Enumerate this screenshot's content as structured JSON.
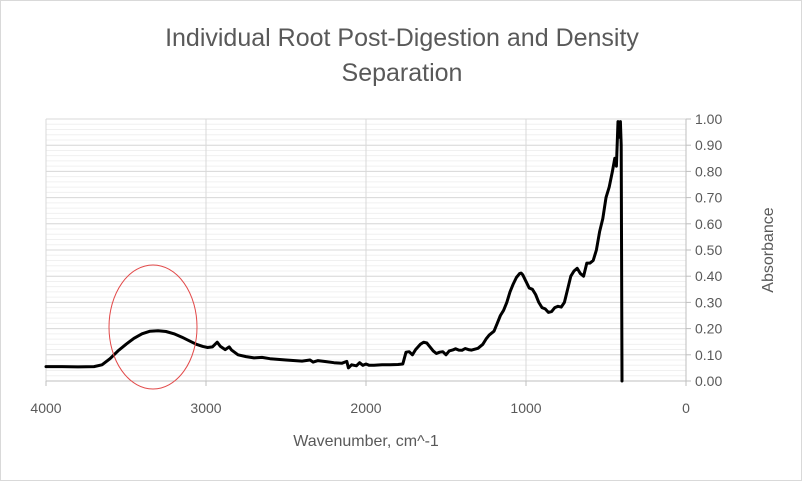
{
  "chart_data": {
    "type": "line",
    "title_line1": "Individual Root Post-Digestion and Density",
    "title_line2": "Separation",
    "xlabel": "Wavenumber, cm^-1",
    "ylabel": "Absorbance",
    "xlim": [
      4000,
      0
    ],
    "ylim": [
      0,
      1
    ],
    "x_reversed": true,
    "y_axis_side": "right",
    "x_ticks": [
      {
        "value": 4000,
        "label": "4000"
      },
      {
        "value": 3000,
        "label": "3000"
      },
      {
        "value": 2000,
        "label": "2000"
      },
      {
        "value": 1000,
        "label": "1000"
      },
      {
        "value": 0,
        "label": "0"
      }
    ],
    "y_ticks": [
      {
        "value": 0.0,
        "label": "0.00"
      },
      {
        "value": 0.1,
        "label": "0.10"
      },
      {
        "value": 0.2,
        "label": "0.20"
      },
      {
        "value": 0.3,
        "label": "0.30"
      },
      {
        "value": 0.4,
        "label": "0.40"
      },
      {
        "value": 0.5,
        "label": "0.50"
      },
      {
        "value": 0.6,
        "label": "0.60"
      },
      {
        "value": 0.7,
        "label": "0.70"
      },
      {
        "value": 0.8,
        "label": "0.80"
      },
      {
        "value": 0.9,
        "label": "0.90"
      },
      {
        "value": 1.0,
        "label": "1.00"
      }
    ],
    "grid": {
      "major_y": true,
      "minor_y": true,
      "major_x": true
    },
    "series": [
      {
        "color": "#000000",
        "points": [
          [
            4000,
            0.055
          ],
          [
            3900,
            0.055
          ],
          [
            3800,
            0.054
          ],
          [
            3700,
            0.055
          ],
          [
            3650,
            0.062
          ],
          [
            3600,
            0.085
          ],
          [
            3550,
            0.115
          ],
          [
            3500,
            0.14
          ],
          [
            3450,
            0.163
          ],
          [
            3400,
            0.18
          ],
          [
            3350,
            0.19
          ],
          [
            3300,
            0.192
          ],
          [
            3250,
            0.189
          ],
          [
            3200,
            0.18
          ],
          [
            3150,
            0.167
          ],
          [
            3100,
            0.152
          ],
          [
            3060,
            0.14
          ],
          [
            3020,
            0.132
          ],
          [
            2990,
            0.128
          ],
          [
            2960,
            0.13
          ],
          [
            2930,
            0.148
          ],
          [
            2910,
            0.132
          ],
          [
            2880,
            0.12
          ],
          [
            2855,
            0.13
          ],
          [
            2840,
            0.118
          ],
          [
            2800,
            0.1
          ],
          [
            2750,
            0.093
          ],
          [
            2700,
            0.088
          ],
          [
            2650,
            0.09
          ],
          [
            2600,
            0.085
          ],
          [
            2500,
            0.08
          ],
          [
            2400,
            0.076
          ],
          [
            2350,
            0.08
          ],
          [
            2330,
            0.072
          ],
          [
            2300,
            0.078
          ],
          [
            2250,
            0.074
          ],
          [
            2200,
            0.07
          ],
          [
            2150,
            0.068
          ],
          [
            2120,
            0.075
          ],
          [
            2110,
            0.05
          ],
          [
            2090,
            0.062
          ],
          [
            2060,
            0.058
          ],
          [
            2040,
            0.07
          ],
          [
            2020,
            0.06
          ],
          [
            2000,
            0.065
          ],
          [
            1980,
            0.06
          ],
          [
            1950,
            0.06
          ],
          [
            1900,
            0.062
          ],
          [
            1850,
            0.062
          ],
          [
            1800,
            0.063
          ],
          [
            1770,
            0.065
          ],
          [
            1750,
            0.11
          ],
          [
            1730,
            0.112
          ],
          [
            1710,
            0.1
          ],
          [
            1690,
            0.12
          ],
          [
            1660,
            0.14
          ],
          [
            1640,
            0.148
          ],
          [
            1620,
            0.145
          ],
          [
            1600,
            0.13
          ],
          [
            1580,
            0.115
          ],
          [
            1560,
            0.105
          ],
          [
            1540,
            0.11
          ],
          [
            1520,
            0.112
          ],
          [
            1500,
            0.1
          ],
          [
            1480,
            0.115
          ],
          [
            1460,
            0.118
          ],
          [
            1440,
            0.123
          ],
          [
            1420,
            0.118
          ],
          [
            1400,
            0.117
          ],
          [
            1380,
            0.124
          ],
          [
            1360,
            0.12
          ],
          [
            1340,
            0.118
          ],
          [
            1300,
            0.125
          ],
          [
            1270,
            0.14
          ],
          [
            1250,
            0.16
          ],
          [
            1230,
            0.175
          ],
          [
            1200,
            0.19
          ],
          [
            1180,
            0.22
          ],
          [
            1160,
            0.25
          ],
          [
            1140,
            0.27
          ],
          [
            1120,
            0.3
          ],
          [
            1100,
            0.34
          ],
          [
            1080,
            0.37
          ],
          [
            1060,
            0.395
          ],
          [
            1040,
            0.41
          ],
          [
            1030,
            0.412
          ],
          [
            1020,
            0.405
          ],
          [
            1000,
            0.38
          ],
          [
            980,
            0.355
          ],
          [
            960,
            0.35
          ],
          [
            940,
            0.33
          ],
          [
            920,
            0.3
          ],
          [
            900,
            0.28
          ],
          [
            880,
            0.275
          ],
          [
            860,
            0.262
          ],
          [
            840,
            0.265
          ],
          [
            820,
            0.28
          ],
          [
            800,
            0.285
          ],
          [
            780,
            0.282
          ],
          [
            760,
            0.3
          ],
          [
            740,
            0.35
          ],
          [
            720,
            0.4
          ],
          [
            700,
            0.42
          ],
          [
            680,
            0.43
          ],
          [
            660,
            0.41
          ],
          [
            640,
            0.4
          ],
          [
            620,
            0.45
          ],
          [
            600,
            0.45
          ],
          [
            580,
            0.46
          ],
          [
            560,
            0.5
          ],
          [
            540,
            0.57
          ],
          [
            520,
            0.62
          ],
          [
            500,
            0.7
          ],
          [
            480,
            0.74
          ],
          [
            460,
            0.8
          ],
          [
            445,
            0.85
          ],
          [
            435,
            0.82
          ],
          [
            425,
            0.99
          ],
          [
            418,
            0.93
          ],
          [
            410,
            0.99
          ],
          [
            405,
            0.9
          ],
          [
            400,
            0.0
          ]
        ]
      }
    ]
  },
  "annotation": {
    "shape": "ellipse",
    "color": "#e24a4a"
  }
}
